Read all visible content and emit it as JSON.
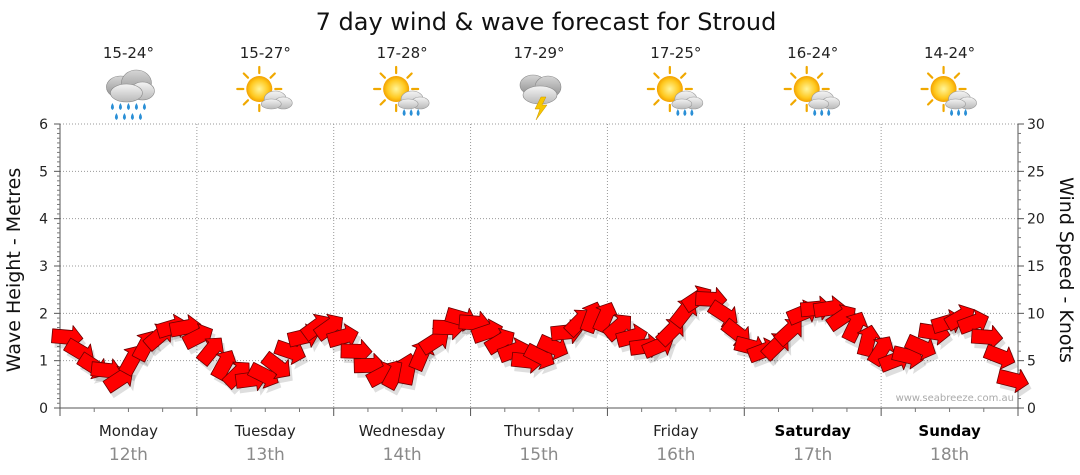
{
  "chart_data": {
    "type": "line",
    "title": "7 day wind & wave forecast for Stroud",
    "ylabel_left": "Wave Height - Metres",
    "ylabel_right": "Wind Speed - Knots",
    "ylim_left": [
      0,
      6
    ],
    "ylim_right": [
      0,
      30
    ],
    "yticks_left": [
      "0",
      "1",
      "2",
      "3",
      "4",
      "5",
      "6"
    ],
    "yticks_right": [
      "0",
      "5",
      "10",
      "15",
      "20",
      "25",
      "30"
    ],
    "grid": true,
    "watermark": "www.seabreeze.com.au",
    "days": [
      {
        "name": "Monday",
        "date": "12th",
        "temp": "15-24°",
        "icon": "rain-cloud-icon",
        "bold": false
      },
      {
        "name": "Tuesday",
        "date": "13th",
        "temp": "15-27°",
        "icon": "sun-cloud-icon",
        "bold": false
      },
      {
        "name": "Wednesday",
        "date": "14th",
        "temp": "17-28°",
        "icon": "sun-showers-icon",
        "bold": false
      },
      {
        "name": "Thursday",
        "date": "15th",
        "temp": "17-29°",
        "icon": "thunderstorm-icon",
        "bold": false
      },
      {
        "name": "Friday",
        "date": "16th",
        "temp": "17-25°",
        "icon": "sun-showers-icon",
        "bold": false
      },
      {
        "name": "Saturday",
        "date": "17th",
        "temp": "16-24°",
        "icon": "sun-showers-icon",
        "bold": true
      },
      {
        "name": "Sunday",
        "date": "18th",
        "temp": "14-24°",
        "icon": "sun-showers-icon",
        "bold": true
      }
    ],
    "series": [
      {
        "name": "Wind Speed",
        "axis": "right",
        "color": "#ff0000",
        "values": [
          7.5,
          6.0,
          4.5,
          4.0,
          3.0,
          5.0,
          6.5,
          7.5,
          8.5,
          8.5,
          7.5,
          6.0,
          4.5,
          3.5,
          3.0,
          3.5,
          4.5,
          6.0,
          7.5,
          8.5,
          8.5,
          7.5,
          6.0,
          4.5,
          3.5,
          3.5,
          4.0,
          5.5,
          7.0,
          8.5,
          9.5,
          9.0,
          8.0,
          7.0,
          6.0,
          5.0,
          5.5,
          6.5,
          8.0,
          9.0,
          9.5,
          9.5,
          8.5,
          7.5,
          6.5,
          6.5,
          8.0,
          10.0,
          11.5,
          11.5,
          10.0,
          8.0,
          6.5,
          6.0,
          6.5,
          8.0,
          10.0,
          10.5,
          10.5,
          9.5,
          8.5,
          7.0,
          6.0,
          5.0,
          5.5,
          6.5,
          8.0,
          9.0,
          9.5,
          9.0,
          7.5,
          5.5,
          3.0
        ]
      }
    ]
  }
}
